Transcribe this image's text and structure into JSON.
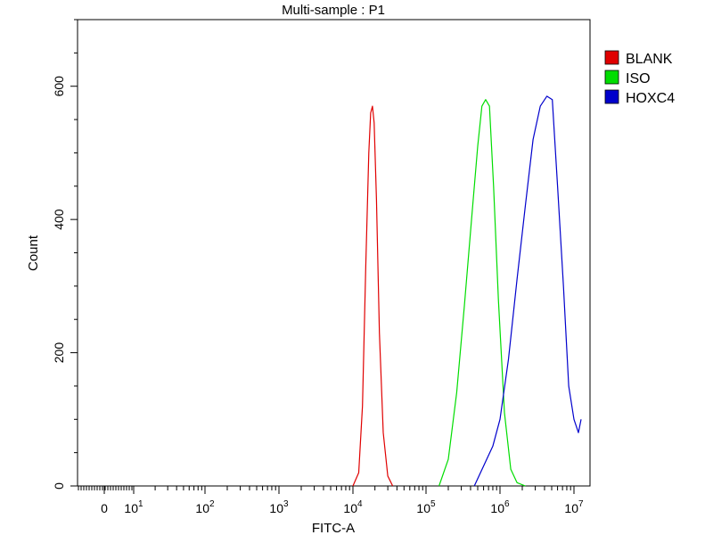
{
  "chart_data": {
    "type": "line",
    "title": "Multi-sample : P1",
    "xlabel": "FITC-A",
    "ylabel": "Count",
    "x_scale": "logicle",
    "ylim": [
      0,
      700
    ],
    "y_ticks": [
      0,
      200,
      400,
      600
    ],
    "y_tick_labels": [
      "0",
      "200",
      "400",
      "600"
    ],
    "x_ticks": [
      0,
      10,
      100,
      1000,
      10000,
      100000,
      1000000,
      10000000
    ],
    "x_tick_labels": [
      {
        "base": "0",
        "exp": ""
      },
      {
        "base": "10",
        "exp": "1"
      },
      {
        "base": "10",
        "exp": "2"
      },
      {
        "base": "10",
        "exp": "3"
      },
      {
        "base": "10",
        "exp": "4"
      },
      {
        "base": "10",
        "exp": "5"
      },
      {
        "base": "10",
        "exp": "6"
      },
      {
        "base": "10",
        "exp": "7"
      }
    ],
    "legend_position": "right",
    "grid": false,
    "series": [
      {
        "name": "BLANK",
        "color": "#e00000",
        "x": [
          10000,
          12000,
          13500,
          15000,
          16500,
          17500,
          18500,
          19500,
          21000,
          23000,
          26000,
          30000,
          35000
        ],
        "y": [
          0,
          20,
          120,
          330,
          500,
          560,
          570,
          545,
          430,
          230,
          80,
          15,
          0
        ]
      },
      {
        "name": "ISO",
        "color": "#00dd00",
        "x": [
          150000,
          200000,
          260000,
          330000,
          420000,
          500000,
          570000,
          640000,
          720000,
          820000,
          950000,
          1150000,
          1400000,
          1700000,
          2200000
        ],
        "y": [
          0,
          40,
          140,
          270,
          410,
          510,
          570,
          580,
          570,
          450,
          280,
          110,
          25,
          5,
          0
        ]
      },
      {
        "name": "HOXC4",
        "color": "#0000cc",
        "x": [
          450000,
          600000,
          800000,
          1000000,
          1300000,
          1700000,
          2200000,
          2800000,
          3500000,
          4300000,
          5100000,
          6000000,
          7200000,
          8500000,
          10000000,
          11500000,
          12500000
        ],
        "y": [
          0,
          30,
          60,
          100,
          190,
          310,
          420,
          520,
          570,
          585,
          580,
          450,
          300,
          150,
          100,
          80,
          100
        ]
      }
    ]
  }
}
